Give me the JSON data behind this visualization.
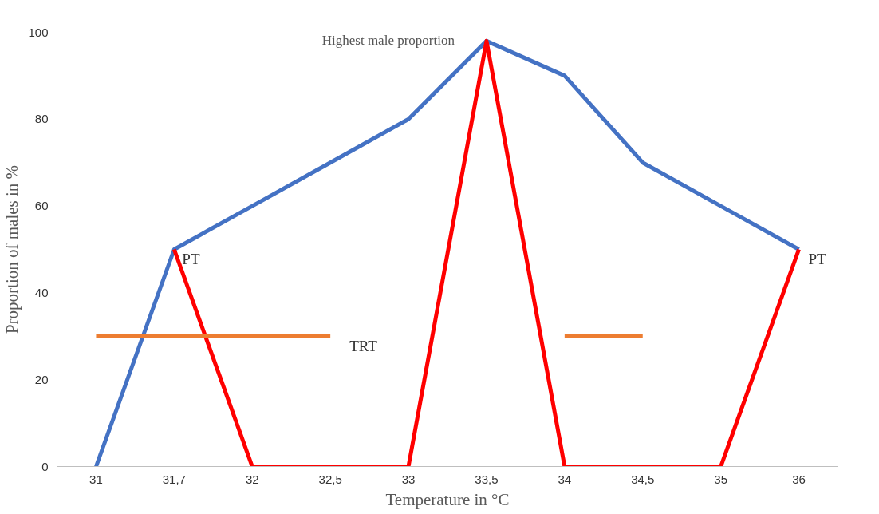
{
  "chart_data": {
    "type": "line",
    "xlabel": "Temperature in °C",
    "ylabel": "Proportion of males in %",
    "categories": [
      "31",
      "31,7",
      "32",
      "32,5",
      "33",
      "33,5",
      "34",
      "34,5",
      "35",
      "36"
    ],
    "series": [
      {
        "color": "#4472c4",
        "values": [
          0,
          50,
          60,
          70,
          80,
          98,
          90,
          70,
          60,
          50
        ]
      },
      {
        "color": "#ff0000",
        "values": [
          null,
          50,
          0,
          0,
          0,
          98,
          0,
          0,
          0,
          50
        ]
      },
      {
        "color": "#ed7d31",
        "values": [
          30,
          30,
          30,
          30,
          null,
          null,
          30,
          30,
          null,
          null
        ]
      }
    ],
    "annotations": [
      {
        "text": "PT",
        "x": "31,7",
        "y": 50
      },
      {
        "text": "PT",
        "x": "36",
        "y": 50
      },
      {
        "text": "TRT",
        "x": "32,5",
        "y": 30
      },
      {
        "text": "Highest male proportion",
        "x": "33,5",
        "y": 98
      }
    ],
    "ylim": [
      0,
      100
    ],
    "yticks": [
      0,
      20,
      40,
      60,
      80,
      100
    ],
    "grid": false,
    "marker": "none",
    "line_style": "solid"
  }
}
